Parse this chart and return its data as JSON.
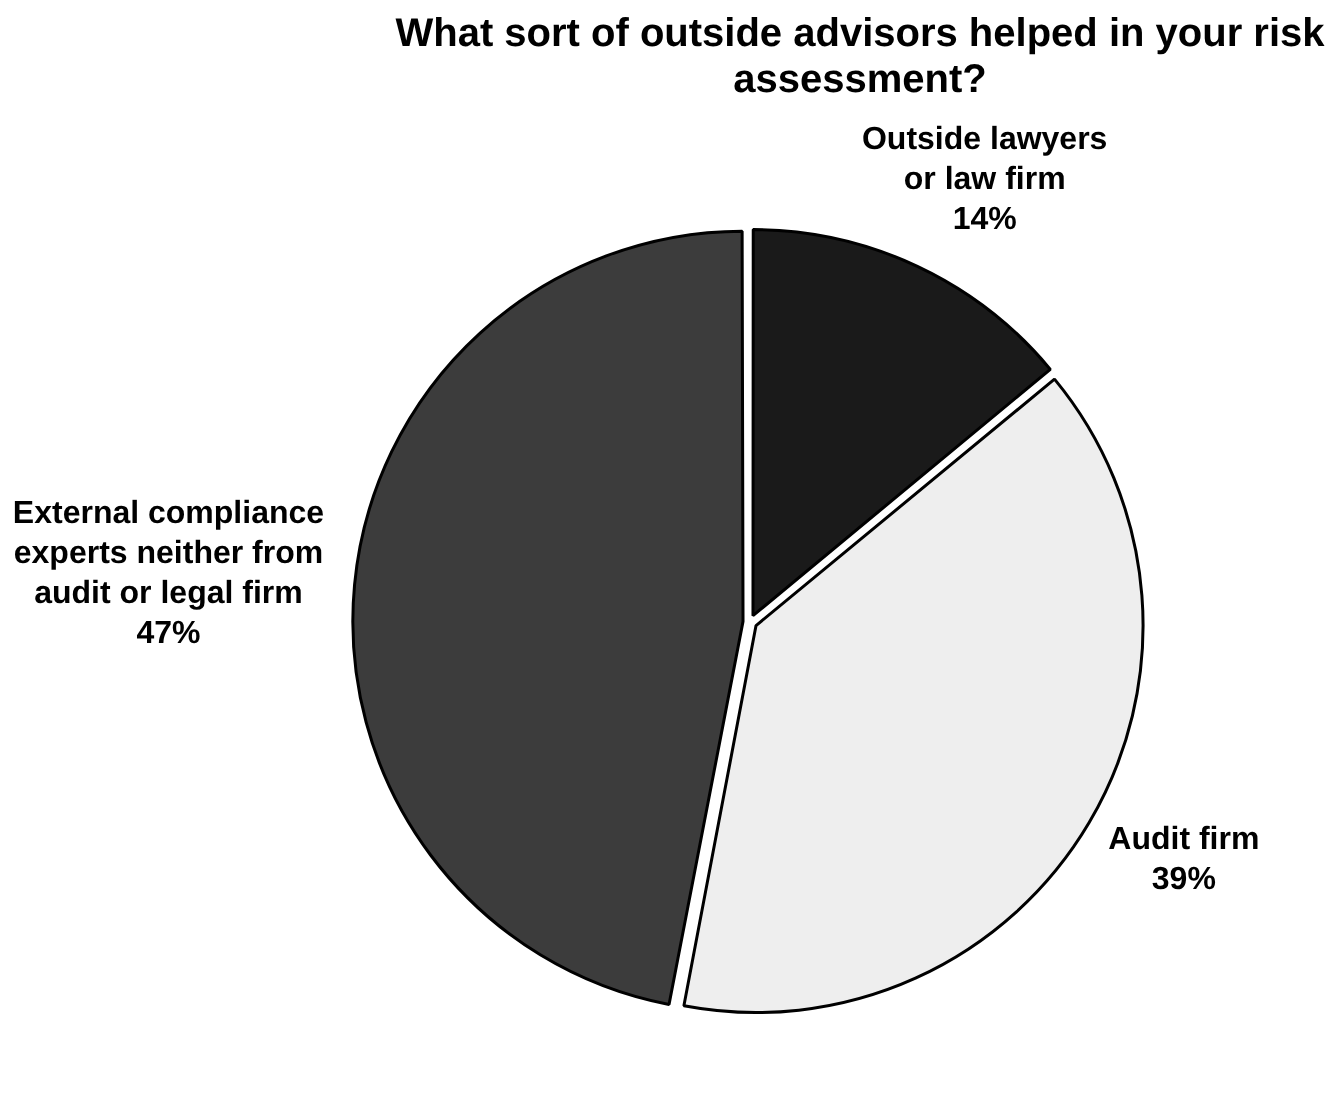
{
  "chart_data": {
    "type": "pie",
    "title": "What sort of outside advisors helped in your risk assessment?",
    "categories": [
      "Outside lawyers or law firm",
      "Audit firm",
      "External compliance experts neither from audit or legal firm"
    ],
    "values": [
      14,
      39,
      47
    ],
    "value_labels": [
      "14%",
      "39%",
      "47%"
    ],
    "colors": [
      "#1a1a1a",
      "#eeeeee",
      "#3c3c3c"
    ],
    "legend": false
  }
}
